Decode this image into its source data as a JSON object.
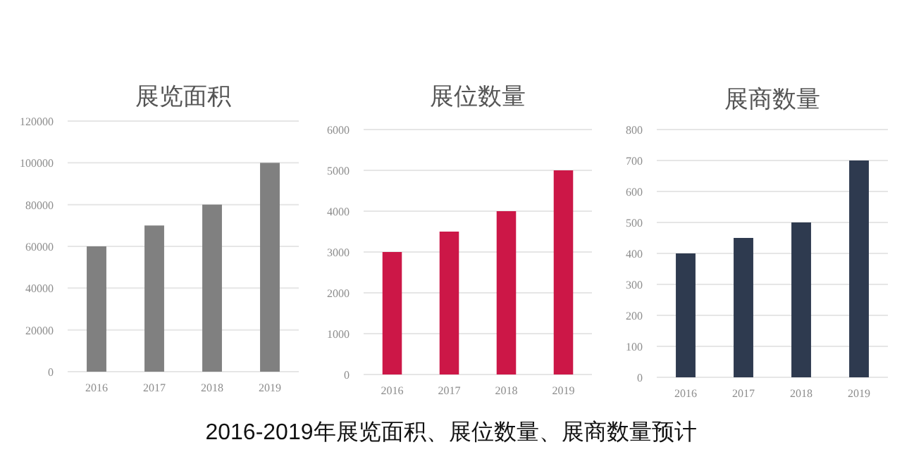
{
  "chart_data": [
    {
      "type": "bar",
      "title": "展览面积",
      "categories": [
        "2016",
        "2017",
        "2018",
        "2019"
      ],
      "values": [
        60000,
        70000,
        80000,
        100000
      ],
      "color": "#808080",
      "ylim": [
        0,
        120000
      ],
      "yticks": [
        0,
        20000,
        40000,
        60000,
        80000,
        100000,
        120000
      ],
      "grid": "y",
      "annotations": [
        "2016-2019年展览面积、展位数量、展商数量预计"
      ]
    },
    {
      "type": "bar",
      "title": "展位数量",
      "categories": [
        "2016",
        "2017",
        "2018",
        "2019"
      ],
      "values": [
        3000,
        3500,
        4000,
        5000
      ],
      "color": "#cc1747",
      "ylim": [
        0,
        6000
      ],
      "yticks": [
        0,
        1000,
        2000,
        3000,
        4000,
        5000,
        6000
      ],
      "grid": "y"
    },
    {
      "type": "bar",
      "title": "展商数量",
      "categories": [
        "2016",
        "2017",
        "2018",
        "2019"
      ],
      "values": [
        400,
        450,
        500,
        700
      ],
      "color": "#2e3a4f",
      "ylim": [
        0,
        800
      ],
      "yticks": [
        0,
        100,
        200,
        300,
        400,
        500,
        600,
        700,
        800
      ],
      "grid": "y"
    }
  ]
}
